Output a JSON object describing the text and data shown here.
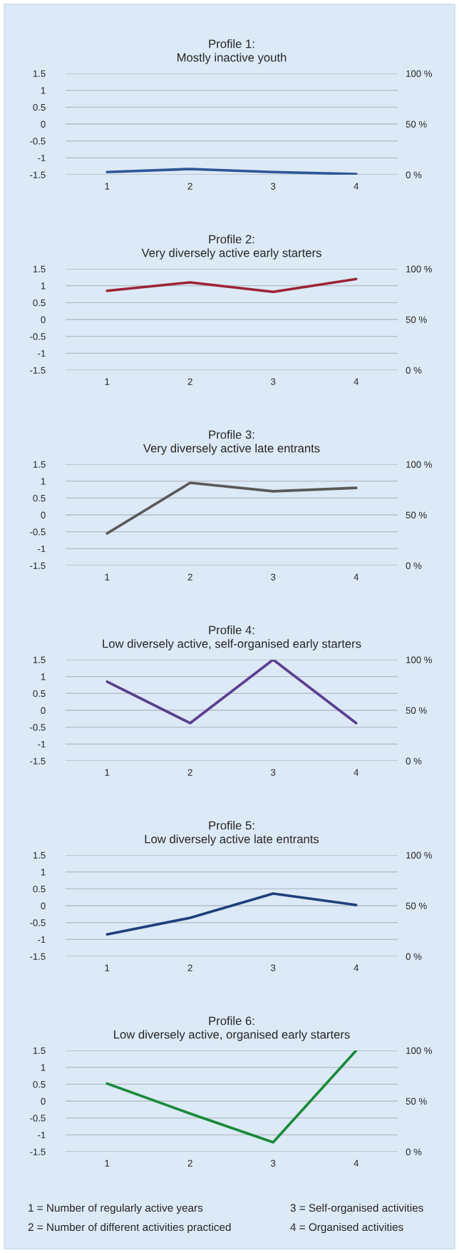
{
  "chart_data": [
    {
      "type": "line",
      "title": "Profile 1:\nMostly inactive youth",
      "categories": [
        "1",
        "2",
        "3",
        "4"
      ],
      "series": [
        {
          "color": "#2e5597",
          "values": [
            -1.42,
            -1.33,
            -1.42,
            -1.48
          ]
        }
      ],
      "ylim": [
        -1.5,
        1.5
      ],
      "yticks": [
        -1.5,
        -1,
        -0.5,
        0,
        0.5,
        1,
        1.5
      ],
      "y2lim": [
        0,
        100
      ],
      "y2ticks": [
        {
          "value": 0,
          "label": "0 %"
        },
        {
          "value": 50,
          "label": "50 %"
        },
        {
          "value": 100,
          "label": "100 %"
        }
      ],
      "grid": "y"
    },
    {
      "type": "line",
      "title": "Profile 2:\nVery diversely active early starters",
      "categories": [
        "1",
        "2",
        "3",
        "4"
      ],
      "series": [
        {
          "color": "#9b2335",
          "values": [
            0.85,
            1.1,
            0.82,
            1.2
          ]
        }
      ],
      "ylim": [
        -1.5,
        1.5
      ],
      "yticks": [
        -1.5,
        -1,
        -0.5,
        0,
        0.5,
        1,
        1.5
      ],
      "y2lim": [
        0,
        100
      ],
      "y2ticks": [
        {
          "value": 0,
          "label": "0 %"
        },
        {
          "value": 50,
          "label": "50 %"
        },
        {
          "value": 100,
          "label": "100 %"
        }
      ],
      "grid": "y"
    },
    {
      "type": "line",
      "title": "Profile 3:\nVery diversely active late entrants",
      "categories": [
        "1",
        "2",
        "3",
        "4"
      ],
      "series": [
        {
          "color": "#595959",
          "values": [
            -0.55,
            0.95,
            0.7,
            0.8
          ]
        }
      ],
      "ylim": [
        -1.5,
        1.5
      ],
      "yticks": [
        -1.5,
        -1,
        -0.5,
        0,
        0.5,
        1,
        1.5
      ],
      "y2lim": [
        0,
        100
      ],
      "y2ticks": [
        {
          "value": 0,
          "label": "0 %"
        },
        {
          "value": 50,
          "label": "50 %"
        },
        {
          "value": 100,
          "label": "100 %"
        }
      ],
      "grid": "y"
    },
    {
      "type": "line",
      "title": "Profile 4:\nLow diversely active, self-organised early starters",
      "categories": [
        "1",
        "2",
        "3",
        "4"
      ],
      "series": [
        {
          "color": "#5b3f8f",
          "values": [
            0.85,
            -0.38,
            1.5,
            -0.38
          ]
        }
      ],
      "ylim": [
        -1.5,
        1.5
      ],
      "yticks": [
        -1.5,
        -1,
        -0.5,
        0,
        0.5,
        1,
        1.5
      ],
      "y2lim": [
        0,
        100
      ],
      "y2ticks": [
        {
          "value": 0,
          "label": "0 %"
        },
        {
          "value": 50,
          "label": "50 %"
        },
        {
          "value": 100,
          "label": "100 %"
        }
      ],
      "grid": "y"
    },
    {
      "type": "line",
      "title": "Profile 5:\nLow diversely active late entrants",
      "categories": [
        "1",
        "2",
        "3",
        "4"
      ],
      "series": [
        {
          "color": "#1f3f7a",
          "values": [
            -0.85,
            -0.36,
            0.36,
            0.02
          ]
        }
      ],
      "ylim": [
        -1.5,
        1.5
      ],
      "yticks": [
        -1.5,
        -1,
        -0.5,
        0,
        0.5,
        1,
        1.5
      ],
      "y2lim": [
        0,
        100
      ],
      "y2ticks": [
        {
          "value": 0,
          "label": "0 %"
        },
        {
          "value": 50,
          "label": "50 %"
        },
        {
          "value": 100,
          "label": "100 %"
        }
      ],
      "grid": "y"
    },
    {
      "type": "line",
      "title": "Profile 6:\nLow diversely active, organised early starters",
      "categories": [
        "1",
        "2",
        "3",
        "4"
      ],
      "series": [
        {
          "color": "#1a8a3a",
          "values": [
            0.52,
            -0.37,
            -1.22,
            1.5
          ]
        }
      ],
      "ylim": [
        -1.5,
        1.5
      ],
      "yticks": [
        -1.5,
        -1,
        -0.5,
        0,
        0.5,
        1,
        1.5
      ],
      "y2lim": [
        0,
        100
      ],
      "y2ticks": [
        {
          "value": 0,
          "label": "0 %"
        },
        {
          "value": 50,
          "label": "50 %"
        },
        {
          "value": 100,
          "label": "100 %"
        }
      ],
      "grid": "y",
      "annotations": [
        "1 = Number of regularly active years",
        "2 = Number of different activities practiced",
        "3 = Self-organised activities",
        "4 = Organised activities"
      ]
    }
  ]
}
